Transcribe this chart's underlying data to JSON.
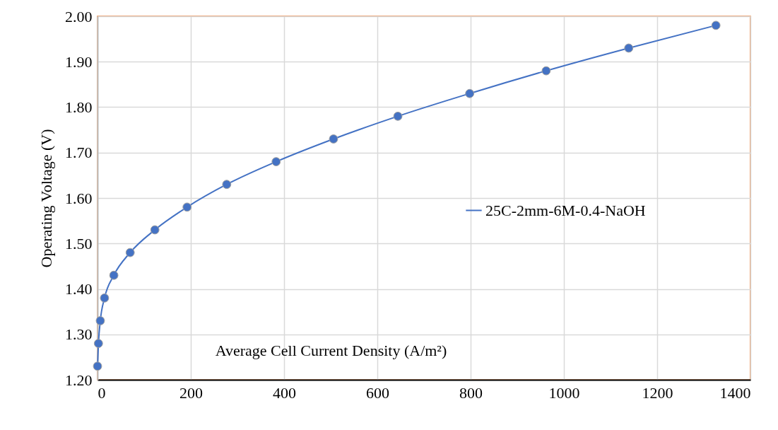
{
  "chart_data": {
    "type": "line",
    "xlabel": "Average Cell Current Density (A/m²)",
    "ylabel": "Operating Voltage (V)",
    "x": [
      0,
      2,
      6,
      15,
      35,
      70,
      123,
      192,
      277,
      383,
      506,
      644,
      798,
      962,
      1139,
      1326
    ],
    "series": [
      {
        "name": "25C-2mm-6M-0.4-NaOH",
        "color": "#4472c4",
        "values": [
          1.23,
          1.28,
          1.33,
          1.38,
          1.43,
          1.48,
          1.53,
          1.58,
          1.63,
          1.68,
          1.73,
          1.78,
          1.83,
          1.88,
          1.93,
          1.98
        ]
      }
    ],
    "xlim": [
      0,
      1400
    ],
    "xticks": [
      0,
      200,
      400,
      600,
      800,
      1000,
      1200,
      1400
    ],
    "ylim": [
      1.2,
      2.0
    ],
    "yticks": [
      {
        "value": 1.2,
        "label": "1.20"
      },
      {
        "value": 1.3,
        "label": "1.30"
      },
      {
        "value": 1.4,
        "label": "1.40"
      },
      {
        "value": 1.5,
        "label": "1.50"
      },
      {
        "value": 1.6,
        "label": "1.60"
      },
      {
        "value": 1.7,
        "label": "1.70"
      },
      {
        "value": 1.8,
        "label": "1.80"
      },
      {
        "value": 1.9,
        "label": "1.90"
      },
      {
        "value": 2.0,
        "label": "2.00"
      }
    ],
    "grid": true,
    "legend": "right",
    "marker": "circle",
    "line_style": "solid"
  }
}
